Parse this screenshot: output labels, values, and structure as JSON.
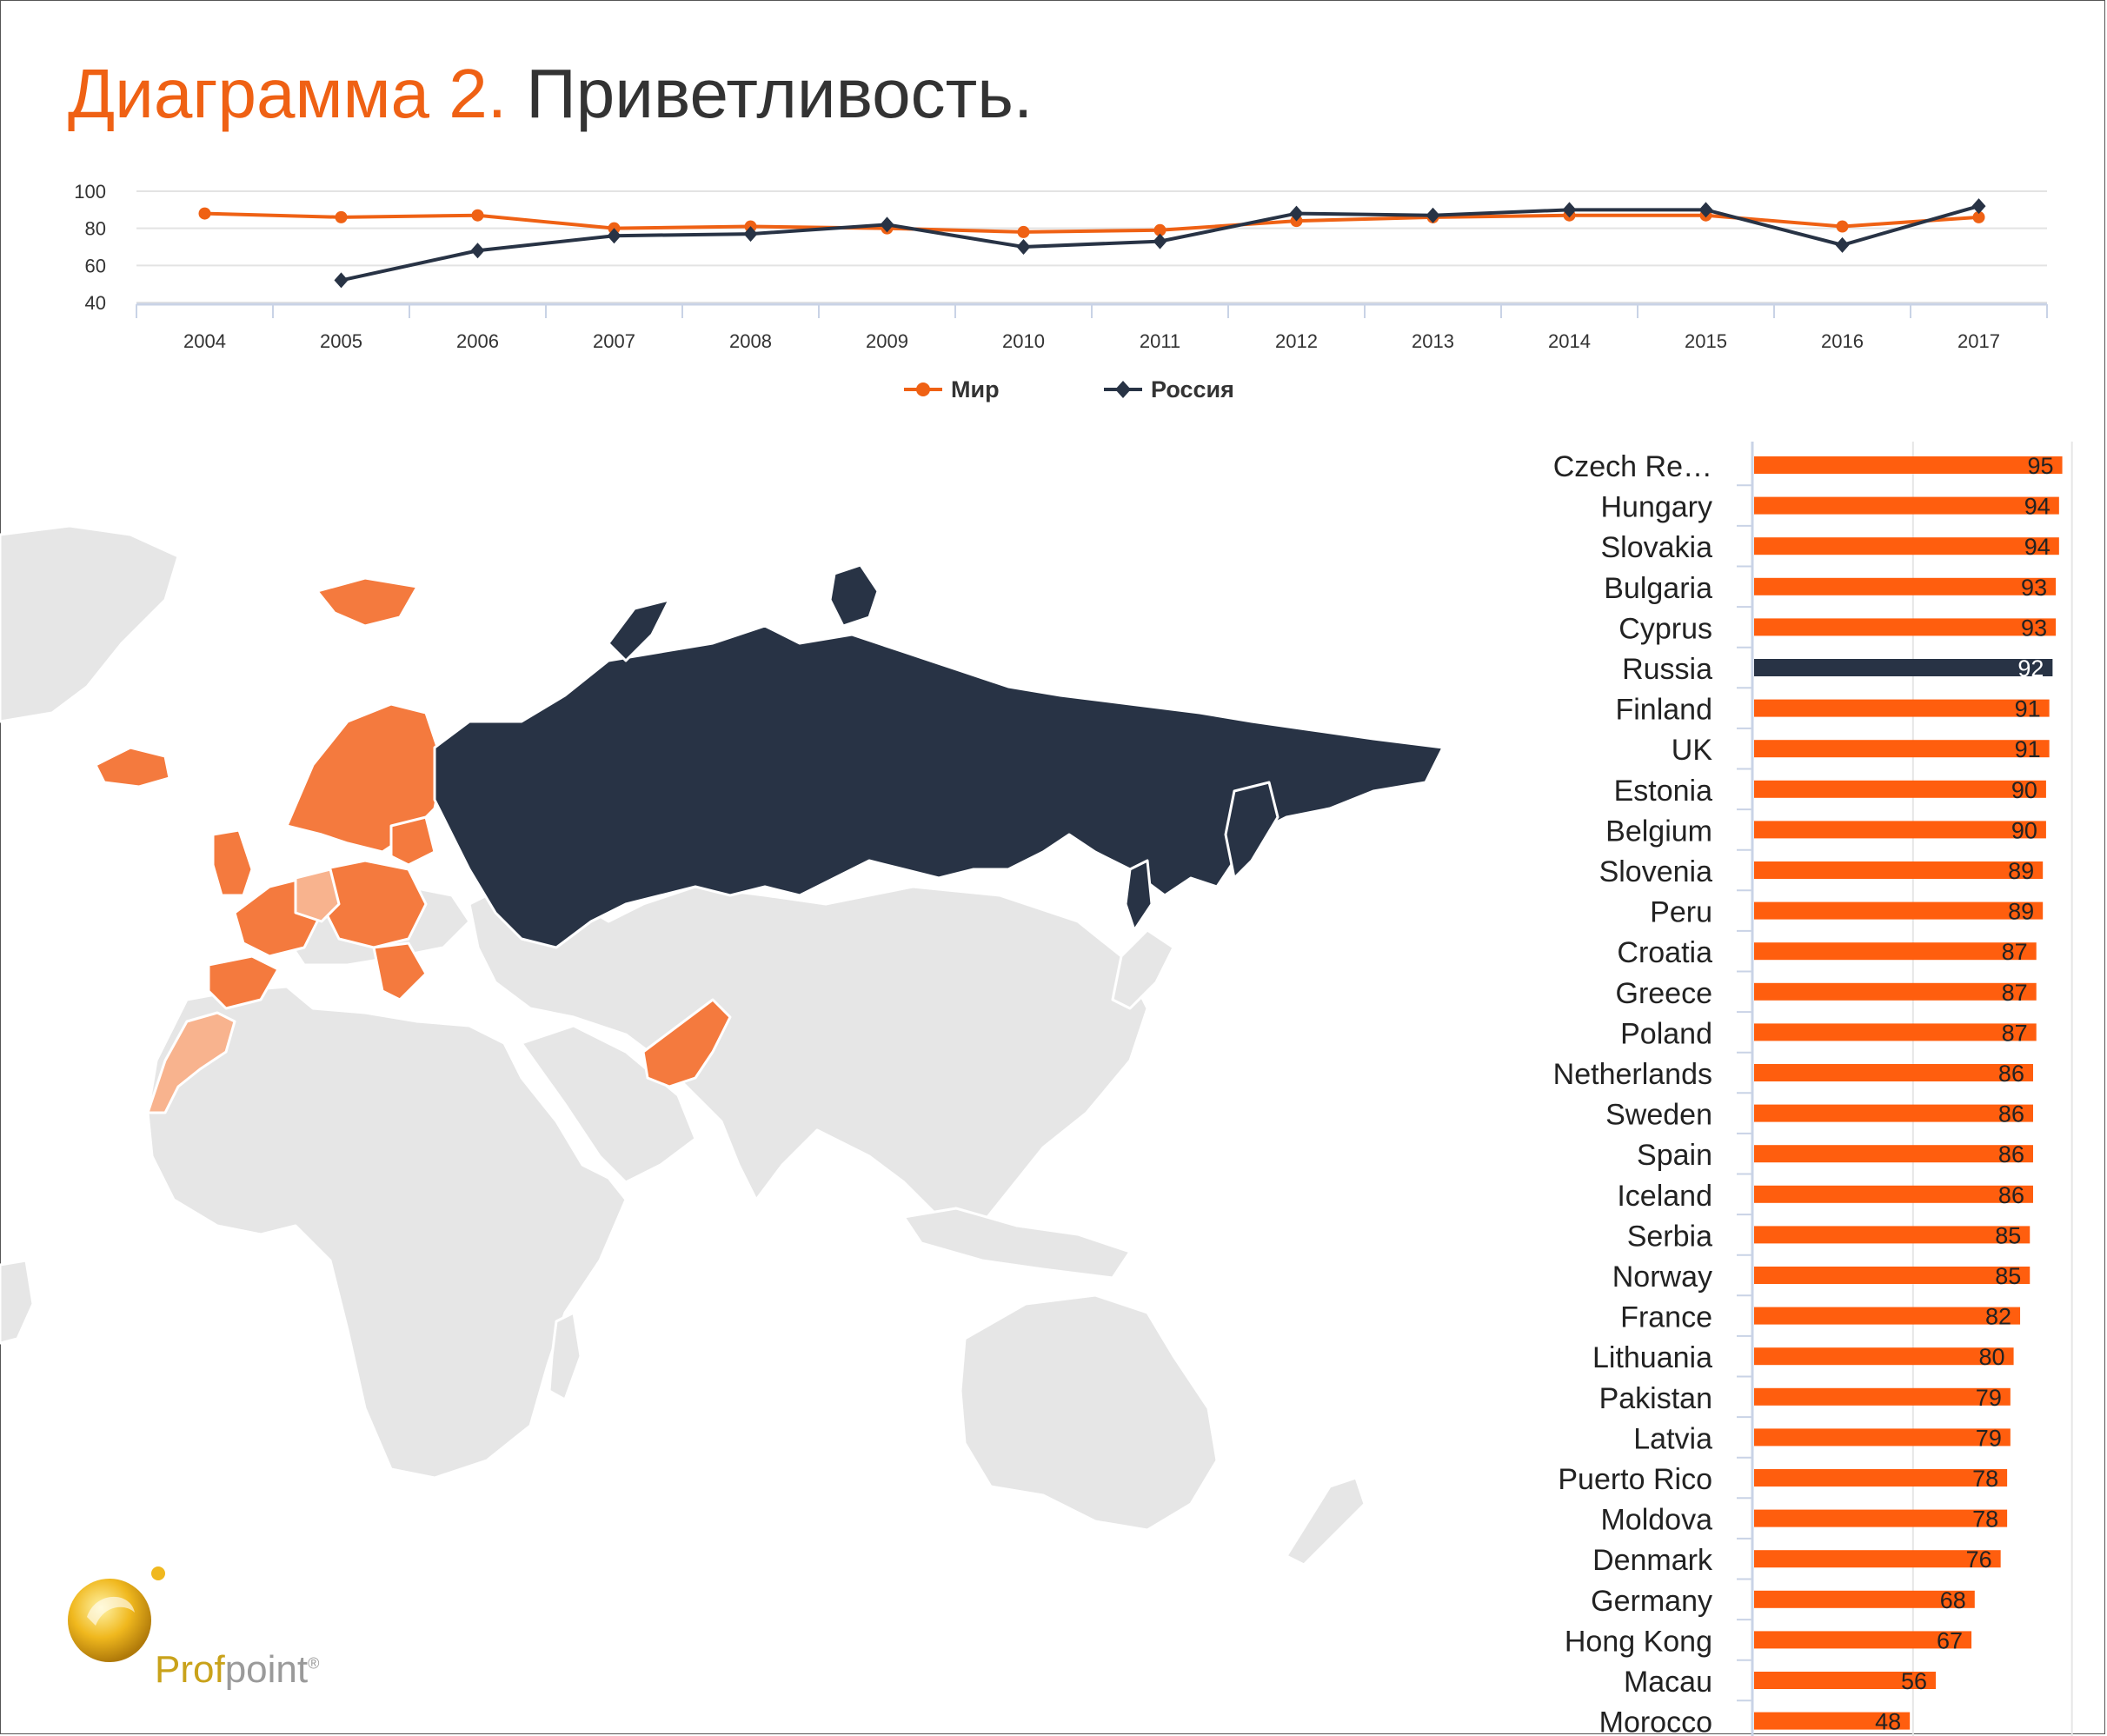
{
  "title": {
    "number": "Диаграмма 2.",
    "name": "Приветливость."
  },
  "brand": {
    "prefix": "Prof",
    "suffix": "point",
    "mark": "®"
  },
  "colors": {
    "world": "#ef6114",
    "russia": "#283345",
    "bar": "#ff5e0e",
    "highlight": "#283345",
    "map_land": "#e6e6e6",
    "map_orange": "#f47a3e",
    "map_light_orange": "#f8b38e"
  },
  "chart_data": [
    {
      "type": "line",
      "x": [
        "2004",
        "2005",
        "2006",
        "2007",
        "2008",
        "2009",
        "2010",
        "2011",
        "2012",
        "2013",
        "2014",
        "2015",
        "2016",
        "2017"
      ],
      "ylim": [
        40,
        100
      ],
      "yticks": [
        "100",
        "80",
        "60",
        "40"
      ],
      "grid": true,
      "legend": "bottom-center",
      "series": [
        {
          "name": "Мир",
          "marker": "circle",
          "values": [
            88,
            86,
            87,
            80,
            81,
            80,
            78,
            79,
            84,
            86,
            87,
            87,
            81,
            86
          ]
        },
        {
          "name": "Россия",
          "marker": "diamond",
          "values": [
            null,
            52,
            68,
            76,
            77,
            82,
            70,
            73,
            88,
            87,
            90,
            90,
            71,
            92
          ]
        }
      ]
    },
    {
      "type": "bar",
      "orientation": "horizontal",
      "highlight": "Russia",
      "categories": [
        "Czech Re…",
        "Hungary",
        "Slovakia",
        "Bulgaria",
        "Cyprus",
        "Russia",
        "Finland",
        "UK",
        "Estonia",
        "Belgium",
        "Slovenia",
        "Peru",
        "Croatia",
        "Greece",
        "Poland",
        "Netherlands",
        "Sweden",
        "Spain",
        "Iceland",
        "Serbia",
        "Norway",
        "France",
        "Lithuania",
        "Pakistan",
        "Latvia",
        "Puerto Rico",
        "Moldova",
        "Denmark",
        "Germany",
        "Hong Kong",
        "Macau",
        "Morocco"
      ],
      "values": [
        95,
        94,
        94,
        93,
        93,
        92,
        91,
        91,
        90,
        90,
        89,
        89,
        87,
        87,
        87,
        86,
        86,
        86,
        86,
        85,
        85,
        82,
        80,
        79,
        79,
        78,
        78,
        76,
        68,
        67,
        56,
        48
      ],
      "labels": [
        "95",
        "94",
        "94",
        "93",
        "93",
        "92",
        "91",
        "91",
        "90",
        "90",
        "89",
        "89",
        "87",
        "87",
        "87",
        "86",
        "86",
        "86",
        "86",
        "85",
        "85",
        "82",
        "80",
        "79",
        "79",
        "78",
        "78",
        "76",
        "68",
        "67",
        "56",
        "48"
      ],
      "grid": true
    }
  ],
  "map": {
    "region": "Eurasia, Africa, Australia"
  }
}
